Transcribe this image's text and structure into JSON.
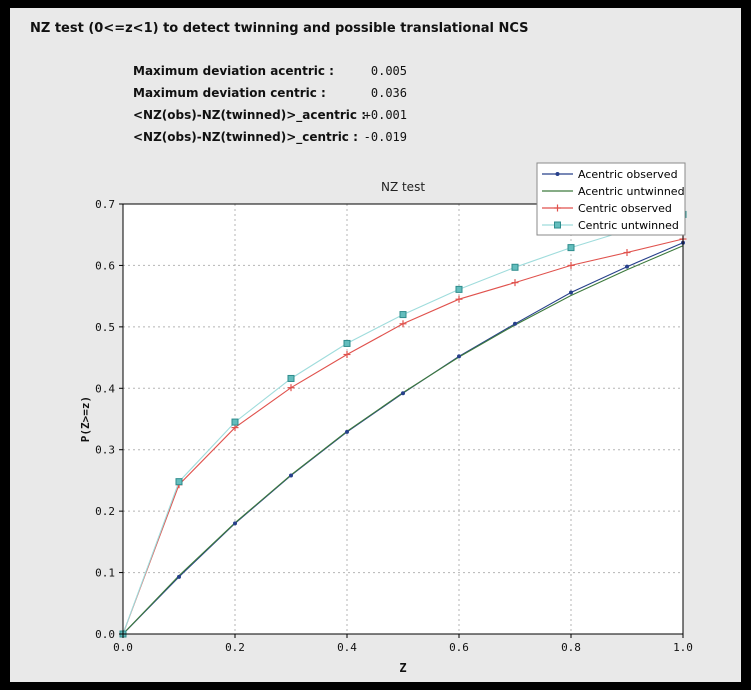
{
  "header": {
    "title": "NZ test (0<=z<1) to detect twinning and possible translational NCS"
  },
  "stats": [
    {
      "label": "Maximum deviation acentric :",
      "value": "0.005"
    },
    {
      "label": "Maximum deviation centric :",
      "value": "0.036"
    },
    {
      "label": "<NZ(obs)-NZ(twinned)>_acentric :",
      "value": "+0.001"
    },
    {
      "label": "<NZ(obs)-NZ(twinned)>_centric :",
      "value": "-0.019"
    }
  ],
  "chart_data": {
    "type": "line",
    "title": "NZ test",
    "xlabel": "Z",
    "ylabel": "P(Z>=z)",
    "xlim": [
      0.0,
      1.0
    ],
    "ylim": [
      0.0,
      0.7
    ],
    "xticks": [
      0.0,
      0.2,
      0.4,
      0.6,
      0.8,
      1.0
    ],
    "yticks": [
      0.0,
      0.1,
      0.2,
      0.3,
      0.4,
      0.5,
      0.6,
      0.7
    ],
    "grid": true,
    "legend_position": "upper right",
    "x": [
      0.0,
      0.1,
      0.2,
      0.3,
      0.4,
      0.5,
      0.6,
      0.7,
      0.8,
      0.9,
      1.0
    ],
    "series": [
      {
        "name": "Acentric observed",
        "color": "#27408b",
        "marker": "dot",
        "values": [
          0.0,
          0.093,
          0.18,
          0.258,
          0.329,
          0.392,
          0.452,
          0.505,
          0.556,
          0.598,
          0.637
        ]
      },
      {
        "name": "Acentric untwinned",
        "color": "#3d7a3d",
        "marker": "none",
        "values": [
          0.0,
          0.095,
          0.181,
          0.259,
          0.33,
          0.393,
          0.451,
          0.503,
          0.551,
          0.593,
          0.632
        ]
      },
      {
        "name": "Centric observed",
        "color": "#e0524d",
        "marker": "plus",
        "values": [
          0.0,
          0.243,
          0.336,
          0.401,
          0.455,
          0.505,
          0.545,
          0.572,
          0.6,
          0.621,
          0.643
        ]
      },
      {
        "name": "Centric untwinned",
        "color": "#9fdcdc",
        "marker": "square",
        "marker_fill": "#63bdbd",
        "marker_edge": "#2e8c8c",
        "values": [
          0.0,
          0.248,
          0.345,
          0.416,
          0.473,
          0.52,
          0.561,
          0.597,
          0.629,
          0.657,
          0.683
        ]
      }
    ]
  }
}
